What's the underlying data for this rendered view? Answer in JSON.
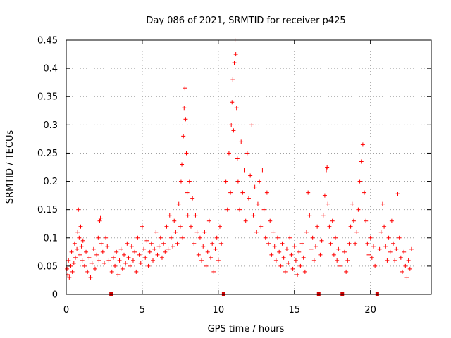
{
  "chart_data": {
    "type": "scatter",
    "title": "Day 086 of 2021, SRMTID for receiver p425",
    "xlabel": "GPS time / hours",
    "ylabel": "SRMTID / TECUs",
    "xlim": [
      0,
      24
    ],
    "ylim": [
      0,
      0.45
    ],
    "grid": true,
    "marker": "+",
    "point_color": "#ff0000",
    "x_ticks": [
      "0",
      "5",
      "10",
      "15",
      "20"
    ],
    "x_tick_values": [
      0,
      5,
      10,
      15,
      20
    ],
    "y_ticks": [
      "0",
      "0.05",
      "0.1",
      "0.15",
      "0.2",
      "0.25",
      "0.3",
      "0.35",
      "0.4",
      "0.45"
    ],
    "y_tick_values": [
      0,
      0.05,
      0.1,
      0.15,
      0.2,
      0.25,
      0.3,
      0.35,
      0.4,
      0.45
    ],
    "gap_markers_x": [
      2.95,
      10.35,
      16.6,
      18.15,
      20.45
    ],
    "gap_marker_color": "#cc0000",
    "series": [
      {
        "name": "SRMTID",
        "points": [
          [
            0.05,
            0.045
          ],
          [
            0.1,
            0.035
          ],
          [
            0.15,
            0.06
          ],
          [
            0.2,
            0.03
          ],
          [
            0.3,
            0.05
          ],
          [
            0.35,
            0.075
          ],
          [
            0.4,
            0.04
          ],
          [
            0.5,
            0.055
          ],
          [
            0.55,
            0.09
          ],
          [
            0.6,
            0.065
          ],
          [
            0.7,
            0.08
          ],
          [
            0.75,
            0.11
          ],
          [
            0.8,
            0.15
          ],
          [
            0.85,
            0.1
          ],
          [
            0.9,
            0.07
          ],
          [
            0.95,
            0.12
          ],
          [
            1.0,
            0.085
          ],
          [
            1.05,
            0.06
          ],
          [
            1.1,
            0.095
          ],
          [
            1.2,
            0.05
          ],
          [
            1.3,
            0.075
          ],
          [
            1.4,
            0.04
          ],
          [
            1.5,
            0.065
          ],
          [
            1.6,
            0.03
          ],
          [
            1.7,
            0.055
          ],
          [
            1.8,
            0.08
          ],
          [
            1.9,
            0.045
          ],
          [
            2.0,
            0.07
          ],
          [
            2.1,
            0.1
          ],
          [
            2.15,
            0.06
          ],
          [
            2.2,
            0.13
          ],
          [
            2.25,
            0.135
          ],
          [
            2.3,
            0.09
          ],
          [
            2.4,
            0.075
          ],
          [
            2.5,
            0.055
          ],
          [
            2.6,
            0.1
          ],
          [
            2.7,
            0.085
          ],
          [
            2.8,
            0.06
          ],
          [
            3.0,
            0.04
          ],
          [
            3.1,
            0.065
          ],
          [
            3.2,
            0.05
          ],
          [
            3.3,
            0.075
          ],
          [
            3.4,
            0.035
          ],
          [
            3.5,
            0.06
          ],
          [
            3.6,
            0.08
          ],
          [
            3.7,
            0.045
          ],
          [
            3.8,
            0.07
          ],
          [
            3.9,
            0.055
          ],
          [
            4.0,
            0.09
          ],
          [
            4.1,
            0.065
          ],
          [
            4.2,
            0.05
          ],
          [
            4.3,
            0.085
          ],
          [
            4.4,
            0.06
          ],
          [
            4.5,
            0.075
          ],
          [
            4.6,
            0.04
          ],
          [
            4.7,
            0.1
          ],
          [
            4.8,
            0.07
          ],
          [
            4.9,
            0.055
          ],
          [
            5.0,
            0.12
          ],
          [
            5.1,
            0.08
          ],
          [
            5.2,
            0.065
          ],
          [
            5.3,
            0.095
          ],
          [
            5.4,
            0.05
          ],
          [
            5.5,
            0.075
          ],
          [
            5.6,
            0.09
          ],
          [
            5.7,
            0.06
          ],
          [
            5.8,
            0.08
          ],
          [
            5.9,
            0.11
          ],
          [
            6.0,
            0.07
          ],
          [
            6.1,
            0.085
          ],
          [
            6.2,
            0.1
          ],
          [
            6.3,
            0.065
          ],
          [
            6.4,
            0.09
          ],
          [
            6.5,
            0.075
          ],
          [
            6.6,
            0.12
          ],
          [
            6.7,
            0.08
          ],
          [
            6.8,
            0.14
          ],
          [
            6.9,
            0.1
          ],
          [
            7.0,
            0.085
          ],
          [
            7.1,
            0.13
          ],
          [
            7.2,
            0.11
          ],
          [
            7.3,
            0.09
          ],
          [
            7.4,
            0.16
          ],
          [
            7.5,
            0.12
          ],
          [
            7.55,
            0.2
          ],
          [
            7.6,
            0.23
          ],
          [
            7.65,
            0.1
          ],
          [
            7.7,
            0.28
          ],
          [
            7.75,
            0.33
          ],
          [
            7.8,
            0.365
          ],
          [
            7.85,
            0.31
          ],
          [
            7.9,
            0.25
          ],
          [
            7.95,
            0.18
          ],
          [
            8.0,
            0.14
          ],
          [
            8.1,
            0.2
          ],
          [
            8.2,
            0.12
          ],
          [
            8.3,
            0.17
          ],
          [
            8.4,
            0.09
          ],
          [
            8.5,
            0.14
          ],
          [
            8.6,
            0.11
          ],
          [
            8.7,
            0.07
          ],
          [
            8.8,
            0.1
          ],
          [
            8.9,
            0.06
          ],
          [
            9.0,
            0.085
          ],
          [
            9.1,
            0.11
          ],
          [
            9.2,
            0.05
          ],
          [
            9.3,
            0.075
          ],
          [
            9.4,
            0.13
          ],
          [
            9.5,
            0.065
          ],
          [
            9.6,
            0.09
          ],
          [
            9.7,
            0.04
          ],
          [
            9.8,
            0.08
          ],
          [
            9.9,
            0.1
          ],
          [
            10.0,
            0.06
          ],
          [
            10.1,
            0.12
          ],
          [
            10.2,
            0.09
          ],
          [
            10.5,
            0.2
          ],
          [
            10.6,
            0.15
          ],
          [
            10.7,
            0.25
          ],
          [
            10.8,
            0.18
          ],
          [
            10.85,
            0.3
          ],
          [
            10.9,
            0.34
          ],
          [
            10.95,
            0.38
          ],
          [
            11.0,
            0.29
          ],
          [
            11.05,
            0.41
          ],
          [
            11.1,
            0.45
          ],
          [
            11.15,
            0.425
          ],
          [
            11.2,
            0.33
          ],
          [
            11.25,
            0.24
          ],
          [
            11.3,
            0.2
          ],
          [
            11.4,
            0.15
          ],
          [
            11.5,
            0.27
          ],
          [
            11.6,
            0.18
          ],
          [
            11.7,
            0.22
          ],
          [
            11.8,
            0.13
          ],
          [
            11.9,
            0.25
          ],
          [
            12.0,
            0.17
          ],
          [
            12.1,
            0.21
          ],
          [
            12.2,
            0.3
          ],
          [
            12.3,
            0.14
          ],
          [
            12.4,
            0.19
          ],
          [
            12.5,
            0.11
          ],
          [
            12.6,
            0.16
          ],
          [
            12.7,
            0.2
          ],
          [
            12.8,
            0.12
          ],
          [
            12.9,
            0.22
          ],
          [
            13.0,
            0.15
          ],
          [
            13.1,
            0.1
          ],
          [
            13.2,
            0.18
          ],
          [
            13.3,
            0.09
          ],
          [
            13.4,
            0.13
          ],
          [
            13.5,
            0.07
          ],
          [
            13.6,
            0.11
          ],
          [
            13.7,
            0.085
          ],
          [
            13.8,
            0.06
          ],
          [
            13.9,
            0.1
          ],
          [
            14.0,
            0.075
          ],
          [
            14.1,
            0.05
          ],
          [
            14.2,
            0.09
          ],
          [
            14.3,
            0.065
          ],
          [
            14.4,
            0.04
          ],
          [
            14.5,
            0.08
          ],
          [
            14.6,
            0.055
          ],
          [
            14.7,
            0.1
          ],
          [
            14.8,
            0.07
          ],
          [
            14.9,
            0.045
          ],
          [
            15.0,
            0.085
          ],
          [
            15.1,
            0.06
          ],
          [
            15.2,
            0.035
          ],
          [
            15.3,
            0.075
          ],
          [
            15.4,
            0.05
          ],
          [
            15.5,
            0.09
          ],
          [
            15.6,
            0.065
          ],
          [
            15.7,
            0.04
          ],
          [
            15.8,
            0.11
          ],
          [
            15.9,
            0.18
          ],
          [
            16.0,
            0.14
          ],
          [
            16.1,
            0.08
          ],
          [
            16.2,
            0.1
          ],
          [
            16.3,
            0.06
          ],
          [
            16.4,
            0.085
          ],
          [
            16.5,
            0.12
          ],
          [
            16.7,
            0.07
          ],
          [
            16.8,
            0.095
          ],
          [
            16.9,
            0.14
          ],
          [
            17.0,
            0.175
          ],
          [
            17.1,
            0.22
          ],
          [
            17.15,
            0.225
          ],
          [
            17.2,
            0.16
          ],
          [
            17.3,
            0.12
          ],
          [
            17.4,
            0.09
          ],
          [
            17.5,
            0.13
          ],
          [
            17.6,
            0.07
          ],
          [
            17.7,
            0.1
          ],
          [
            17.8,
            0.06
          ],
          [
            17.9,
            0.08
          ],
          [
            18.0,
            0.05
          ],
          [
            18.3,
            0.075
          ],
          [
            18.4,
            0.04
          ],
          [
            18.5,
            0.06
          ],
          [
            18.6,
            0.09
          ],
          [
            18.7,
            0.12
          ],
          [
            18.8,
            0.16
          ],
          [
            18.9,
            0.13
          ],
          [
            19.0,
            0.09
          ],
          [
            19.1,
            0.11
          ],
          [
            19.2,
            0.15
          ],
          [
            19.3,
            0.2
          ],
          [
            19.4,
            0.235
          ],
          [
            19.5,
            0.265
          ],
          [
            19.6,
            0.18
          ],
          [
            19.7,
            0.13
          ],
          [
            19.8,
            0.09
          ],
          [
            19.9,
            0.07
          ],
          [
            20.0,
            0.1
          ],
          [
            20.1,
            0.065
          ],
          [
            20.2,
            0.085
          ],
          [
            20.3,
            0.05
          ],
          [
            20.6,
            0.08
          ],
          [
            20.7,
            0.11
          ],
          [
            20.8,
            0.16
          ],
          [
            20.9,
            0.12
          ],
          [
            21.0,
            0.085
          ],
          [
            21.1,
            0.06
          ],
          [
            21.2,
            0.1
          ],
          [
            21.3,
            0.075
          ],
          [
            21.4,
            0.13
          ],
          [
            21.5,
            0.09
          ],
          [
            21.6,
            0.06
          ],
          [
            21.7,
            0.08
          ],
          [
            21.8,
            0.178
          ],
          [
            21.9,
            0.1
          ],
          [
            22.0,
            0.065
          ],
          [
            22.1,
            0.04
          ],
          [
            22.2,
            0.075
          ],
          [
            22.3,
            0.05
          ],
          [
            22.4,
            0.03
          ],
          [
            22.5,
            0.06
          ],
          [
            22.6,
            0.045
          ],
          [
            22.7,
            0.08
          ]
        ]
      }
    ]
  }
}
